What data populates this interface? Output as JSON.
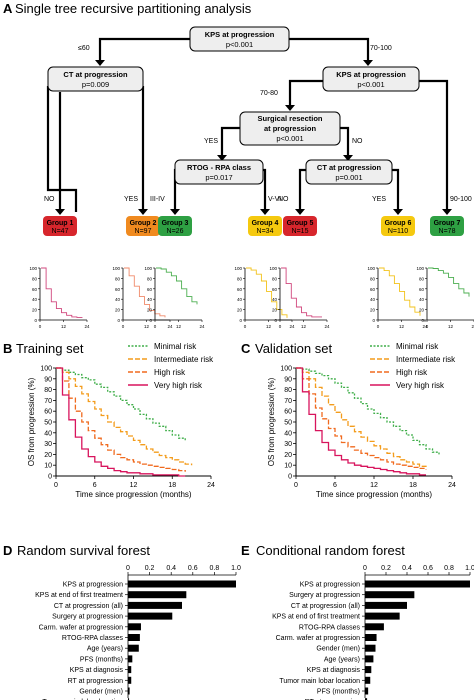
{
  "panels": {
    "A": {
      "letter": "A",
      "title": "Single tree recursive partitioning analysis",
      "nodes": {
        "root": {
          "name": "KPS at progression",
          "p": "p<0.001"
        },
        "ct1": {
          "name": "CT at progression",
          "p": "p=0.009"
        },
        "kps2": {
          "name": "KPS at progression",
          "p": "p<0.001"
        },
        "surg": {
          "name": "Surgical resection",
          "name2": "at progression",
          "p": "p<0.001"
        },
        "rtog": {
          "name": "RTOG - RPA class",
          "p": "p=0.017"
        },
        "ct2": {
          "name": "CT at progression",
          "p": "p=0.001"
        }
      },
      "edge_labels": {
        "root_left": "≤60",
        "root_right": "70-100",
        "ct1_no": "NO",
        "ct1_yes": "YES",
        "kps2_left": "70-80",
        "kps2_right": "90-100",
        "surg_yes": "YES",
        "surg_no": "NO",
        "rtog_left": "III-IV",
        "rtog_right": "V-VI",
        "ct2_no": "NO",
        "ct2_yes": "YES"
      },
      "groups": [
        {
          "name": "Group 1",
          "n": "N=47",
          "color": "#d7262c",
          "curve": "#d1477d"
        },
        {
          "name": "Group 2",
          "n": "N=97",
          "color": "#f08a1f",
          "curve": "#f08a6a"
        },
        {
          "name": "Group 3",
          "n": "N=26",
          "color": "#2ea043",
          "curve": "#4caf50"
        },
        {
          "name": "Group 4",
          "n": "N=34",
          "color": "#f5c90f",
          "curve": "#f2c21b"
        },
        {
          "name": "Group 5",
          "n": "N=15",
          "color": "#d7262c",
          "curve": "#d1477d"
        },
        {
          "name": "Group 6",
          "n": "N=110",
          "color": "#f5c90f",
          "curve": "#f2c21b"
        },
        {
          "name": "Group 7",
          "n": "N=78",
          "color": "#2ea043",
          "curve": "#4caf50"
        }
      ],
      "mini_axis": {
        "yticks": [
          "100",
          "80",
          "60",
          "40",
          "20",
          "0"
        ],
        "xticks": [
          "0",
          "12",
          "24"
        ]
      }
    },
    "B": {
      "letter": "B",
      "title": "Training set"
    },
    "C": {
      "letter": "C",
      "title": "Validation set"
    },
    "D": {
      "letter": "D",
      "title": "Random survival forest"
    },
    "E": {
      "letter": "E",
      "title": "Conditional random forest"
    }
  },
  "legend": [
    "Minimal risk",
    "Intermediate risk",
    "High risk",
    "Very high risk"
  ],
  "colors": {
    "minimal": "#3fae49",
    "intermediate": "#f39c1b",
    "high": "#f06a1e",
    "very_high": "#d8145d",
    "black": "#000000"
  },
  "chart_data": [
    {
      "type": "line",
      "panel": "B",
      "title": "Training set",
      "xlabel": "Time since progression (months)",
      "ylabel": "OS from progression (%)",
      "xlim": [
        0,
        24
      ],
      "ylim": [
        0,
        100
      ],
      "xticks": [
        "0",
        "6",
        "12",
        "18",
        "24"
      ],
      "yticks": [
        "0",
        "10",
        "20",
        "30",
        "40",
        "50",
        "60",
        "70",
        "80",
        "90",
        "100"
      ],
      "series": [
        {
          "name": "Minimal risk",
          "x": [
            0,
            1,
            2,
            3,
            4,
            5,
            6,
            7,
            8,
            9,
            10,
            11,
            12,
            13,
            14,
            15,
            16,
            17,
            18,
            19,
            20
          ],
          "y": [
            100,
            98,
            96,
            94,
            91,
            89,
            85,
            82,
            78,
            74,
            70,
            66,
            62,
            57,
            53,
            49,
            46,
            42,
            38,
            35,
            32
          ]
        },
        {
          "name": "Intermediate risk",
          "x": [
            0,
            1,
            2,
            3,
            4,
            5,
            6,
            7,
            8,
            9,
            10,
            11,
            12,
            13,
            14,
            15,
            16,
            17,
            18,
            19,
            20,
            21
          ],
          "y": [
            100,
            96,
            90,
            83,
            76,
            69,
            62,
            56,
            50,
            45,
            41,
            37,
            33,
            29,
            25,
            22,
            19,
            17,
            15,
            13,
            11,
            10
          ]
        },
        {
          "name": "High risk",
          "x": [
            0,
            1,
            2,
            3,
            4,
            5,
            6,
            7,
            8,
            9,
            10,
            11,
            12,
            13,
            14,
            15,
            16,
            17,
            18,
            19,
            20
          ],
          "y": [
            100,
            88,
            72,
            60,
            50,
            42,
            35,
            29,
            24,
            20,
            17,
            15,
            13,
            11,
            10,
            9,
            8,
            7,
            6,
            5,
            4
          ]
        },
        {
          "name": "Very high risk",
          "x": [
            0,
            1,
            2,
            3,
            4,
            5,
            6,
            7,
            8,
            9,
            10,
            11,
            12,
            13,
            14,
            15,
            16,
            17,
            18,
            19,
            20
          ],
          "y": [
            100,
            75,
            52,
            36,
            25,
            18,
            13,
            9,
            7,
            5,
            4,
            3,
            3,
            2,
            2,
            1,
            1,
            1,
            1,
            0,
            0
          ]
        }
      ]
    },
    {
      "type": "line",
      "panel": "C",
      "title": "Validation set",
      "xlabel": "Time since progression (months)",
      "ylabel": "OS from progression (%)",
      "xlim": [
        0,
        24
      ],
      "ylim": [
        0,
        100
      ],
      "xticks": [
        "0",
        "6",
        "12",
        "18",
        "24"
      ],
      "yticks": [
        "0",
        "10",
        "20",
        "30",
        "40",
        "50",
        "60",
        "70",
        "80",
        "90",
        "100"
      ],
      "series": [
        {
          "name": "Minimal risk",
          "x": [
            0,
            1,
            2,
            3,
            4,
            5,
            6,
            7,
            8,
            9,
            10,
            11,
            12,
            13,
            14,
            15,
            16,
            17,
            18,
            19,
            20,
            21,
            22
          ],
          "y": [
            100,
            99,
            97,
            95,
            93,
            90,
            86,
            82,
            77,
            72,
            67,
            62,
            58,
            54,
            50,
            46,
            42,
            38,
            33,
            29,
            25,
            22,
            20
          ]
        },
        {
          "name": "Intermediate risk",
          "x": [
            0,
            1,
            2,
            3,
            4,
            5,
            6,
            7,
            8,
            9,
            10,
            11,
            12,
            13,
            14,
            15,
            16,
            17,
            18,
            19,
            20
          ],
          "y": [
            100,
            96,
            90,
            82,
            74,
            66,
            59,
            52,
            46,
            41,
            36,
            32,
            28,
            25,
            21,
            18,
            15,
            13,
            11,
            9,
            8
          ]
        },
        {
          "name": "High risk",
          "x": [
            0,
            1,
            2,
            3,
            4,
            5,
            6,
            7,
            8,
            9,
            10,
            11,
            12,
            13,
            14,
            15,
            16,
            17,
            18,
            19,
            20
          ],
          "y": [
            100,
            90,
            76,
            63,
            53,
            44,
            37,
            31,
            27,
            24,
            21,
            19,
            17,
            15,
            13,
            11,
            10,
            9,
            8,
            7,
            6
          ]
        },
        {
          "name": "Very high risk",
          "x": [
            0,
            1,
            2,
            3,
            4,
            5,
            6,
            7,
            8,
            9,
            10,
            11,
            12,
            13,
            14,
            15,
            16,
            17,
            18,
            19,
            20
          ],
          "y": [
            100,
            78,
            57,
            42,
            31,
            24,
            19,
            15,
            12,
            10,
            9,
            8,
            7,
            6,
            5,
            4,
            3,
            2,
            2,
            1,
            1
          ]
        }
      ]
    },
    {
      "type": "bar",
      "panel": "D",
      "title": "Random survival forest",
      "orientation": "horizontal",
      "xlim": [
        0,
        1.0
      ],
      "xticks": [
        "0",
        "0.2",
        "0.4",
        "0.6",
        "0.8",
        "1.0"
      ],
      "categories": [
        "KPS at progression",
        "KPS at end of first treatment",
        "CT at progression (all)",
        "Surgery at progression",
        "Carm. wafer at progression",
        "RTOG-RPA classes",
        "Age (years)",
        "PFS (months)",
        "KPS at diagnosis",
        "RT at progression",
        "Gender (men)",
        "Tumor main lobar location"
      ],
      "values": [
        1.0,
        0.54,
        0.5,
        0.41,
        0.12,
        0.11,
        0.1,
        0.04,
        0.03,
        0.03,
        0.015,
        0.01
      ]
    },
    {
      "type": "bar",
      "panel": "E",
      "title": "Conditional random forest",
      "orientation": "horizontal",
      "xlim": [
        0,
        1.0
      ],
      "xticks": [
        "0",
        "0.2",
        "0.4",
        "0.6",
        "0.8",
        "1.0"
      ],
      "categories": [
        "KPS at progression",
        "Surgery at progression",
        "CT at progression (all)",
        "KPS at end of first treatment",
        "RTOG-RPA classes",
        "Carm. wafer at progression",
        "Gender (men)",
        "Age (years)",
        "KPS at diagnosis",
        "Tumor main lobar location",
        "PFS (months)",
        "RT at progression"
      ],
      "values": [
        1.0,
        0.47,
        0.4,
        0.33,
        0.18,
        0.11,
        0.1,
        0.08,
        0.06,
        0.05,
        0.03,
        0.02
      ]
    }
  ]
}
